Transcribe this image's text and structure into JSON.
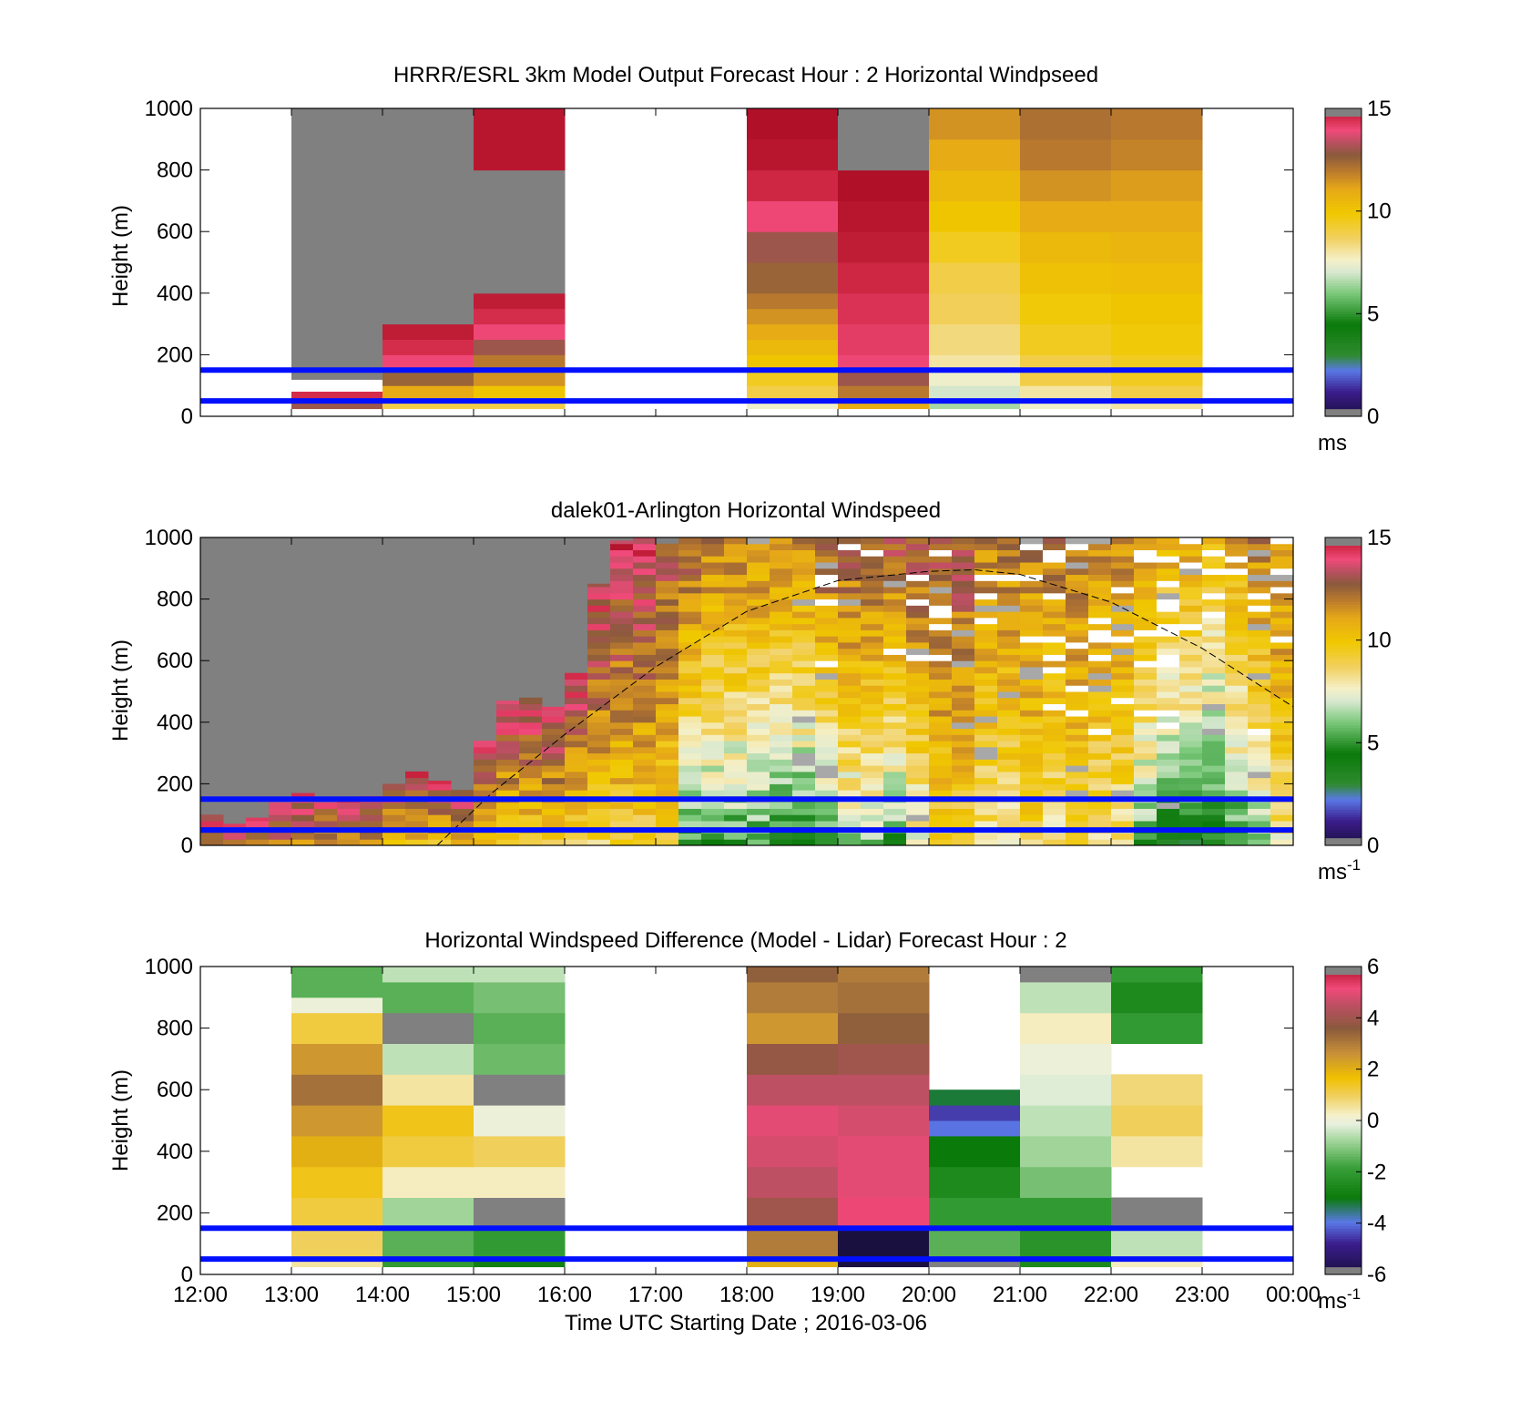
{
  "chart_data": [
    {
      "type": "heatmap",
      "title": "HRRR/ESRL 3km Model Output   Forecast Hour : 2 Horizontal Windpseed",
      "ylabel": "Height (m)",
      "ylim": [
        0,
        1000
      ],
      "yticks": [
        "0",
        "200",
        "400",
        "600",
        "800",
        "1000"
      ],
      "xlim_hours": [
        12,
        24
      ],
      "colorbar": {
        "ticks": [
          "0",
          "5",
          "10",
          "15"
        ],
        "range": [
          0,
          15
        ],
        "unit": "ms",
        "unit_sup": ""
      },
      "hlines_m": [
        50,
        150
      ],
      "columns": [
        {
          "start": 13,
          "end": 14,
          "profile": [
            [
              25,
              6
            ],
            [
              50,
              13
            ],
            [
              80,
              14.5
            ],
            [
              120,
              null
            ],
            [
              1000,
              -1
            ]
          ]
        },
        {
          "start": 14,
          "end": 15,
          "profile": [
            [
              25,
              7
            ],
            [
              50,
              9
            ],
            [
              100,
              11
            ],
            [
              150,
              12.5
            ],
            [
              200,
              14
            ],
            [
              250,
              14.5
            ],
            [
              300,
              14.8
            ],
            [
              1000,
              -1
            ]
          ]
        },
        {
          "start": 15,
          "end": 16,
          "profile": [
            [
              25,
              6
            ],
            [
              50,
              9
            ],
            [
              100,
              10
            ],
            [
              150,
              11.5
            ],
            [
              200,
              12
            ],
            [
              250,
              13
            ],
            [
              300,
              14
            ],
            [
              350,
              14.5
            ],
            [
              400,
              14.8
            ],
            [
              800,
              -1
            ],
            [
              1000,
              14.9
            ]
          ]
        },
        {
          "start": 16,
          "end": 18,
          "profile": [
            [
              1000,
              null
            ]
          ]
        },
        {
          "start": 18,
          "end": 19,
          "profile": [
            [
              25,
              7
            ],
            [
              50,
              7.5
            ],
            [
              100,
              9
            ],
            [
              150,
              9.5
            ],
            [
              200,
              10
            ],
            [
              250,
              10.5
            ],
            [
              300,
              11
            ],
            [
              350,
              11.5
            ],
            [
              400,
              12
            ],
            [
              500,
              12.5
            ],
            [
              600,
              13
            ],
            [
              700,
              14
            ],
            [
              800,
              14.6
            ],
            [
              900,
              14.9
            ],
            [
              1000,
              15
            ]
          ]
        },
        {
          "start": 19,
          "end": 20,
          "profile": [
            [
              25,
              10
            ],
            [
              50,
              11
            ],
            [
              100,
              12
            ],
            [
              150,
              13
            ],
            [
              200,
              14
            ],
            [
              300,
              14.2
            ],
            [
              400,
              14.4
            ],
            [
              500,
              14.6
            ],
            [
              600,
              14.8
            ],
            [
              700,
              14.9
            ],
            [
              800,
              15
            ],
            [
              1000,
              -1
            ]
          ]
        },
        {
          "start": 20,
          "end": 21,
          "profile": [
            [
              25,
              5
            ],
            [
              50,
              6.5
            ],
            [
              100,
              7
            ],
            [
              150,
              7.5
            ],
            [
              200,
              8
            ],
            [
              300,
              8.4
            ],
            [
              400,
              8.8
            ],
            [
              500,
              9
            ],
            [
              600,
              9.5
            ],
            [
              700,
              10
            ],
            [
              800,
              10.5
            ],
            [
              900,
              11
            ],
            [
              1000,
              11.5
            ]
          ]
        },
        {
          "start": 21,
          "end": 22,
          "profile": [
            [
              25,
              7
            ],
            [
              50,
              7.5
            ],
            [
              100,
              8
            ],
            [
              200,
              9
            ],
            [
              300,
              9.5
            ],
            [
              400,
              9.8
            ],
            [
              500,
              10.2
            ],
            [
              600,
              10.5
            ],
            [
              700,
              11
            ],
            [
              800,
              11.5
            ],
            [
              900,
              12
            ],
            [
              1000,
              12.2
            ]
          ]
        },
        {
          "start": 22,
          "end": 23,
          "profile": [
            [
              25,
              7
            ],
            [
              50,
              8
            ],
            [
              100,
              9
            ],
            [
              200,
              9.5
            ],
            [
              300,
              9.8
            ],
            [
              400,
              10
            ],
            [
              500,
              10.3
            ],
            [
              600,
              10.6
            ],
            [
              700,
              11
            ],
            [
              800,
              11.3
            ],
            [
              900,
              11.8
            ],
            [
              1000,
              12
            ]
          ]
        }
      ]
    },
    {
      "type": "heatmap",
      "title": "dalek01-Arlington  Horizontal Windspeed",
      "ylabel": "Height (m)",
      "ylim": [
        0,
        1000
      ],
      "yticks": [
        "0",
        "200",
        "400",
        "600",
        "800",
        "1000"
      ],
      "xlim_hours": [
        12,
        24
      ],
      "colorbar": {
        "ticks": [
          "0",
          "5",
          "10",
          "15"
        ],
        "range": [
          0,
          15
        ],
        "unit": "ms",
        "unit_sup": "-1"
      },
      "hlines_m": [
        50,
        150
      ],
      "boundary_curve": {
        "x_hours": [
          14.6,
          15.2,
          16,
          17,
          18,
          19,
          20,
          20.5,
          21,
          22,
          23,
          24
        ],
        "height_m": [
          0,
          170,
          360,
          580,
          760,
          860,
          890,
          895,
          880,
          790,
          640,
          450
        ]
      },
      "lidar_columns_hours": [
        12.0,
        12.25,
        12.5,
        12.75,
        13.0,
        13.25,
        13.5,
        13.75,
        14.0,
        14.25,
        14.5,
        14.75,
        15.0,
        15.25,
        15.5,
        15.75,
        16.0,
        16.25,
        16.5,
        16.75,
        17.0,
        17.25,
        17.5,
        17.75,
        18.0,
        18.25,
        18.5,
        18.75,
        19.0,
        19.25,
        19.5,
        19.75,
        20.0,
        20.25,
        20.5,
        20.75,
        21.0,
        21.25,
        21.5,
        21.75,
        22.0,
        22.25,
        22.5,
        22.75,
        23.0,
        23.25,
        23.5,
        23.75
      ],
      "lidar_data_top_m": [
        100,
        70,
        90,
        140,
        170,
        140,
        150,
        160,
        200,
        240,
        210,
        180,
        340,
        470,
        480,
        450,
        560,
        850,
        990,
        1000,
        980,
        1000,
        1000,
        1000,
        1000,
        1000,
        1000,
        1000,
        1000,
        1000,
        1000,
        1000,
        1000,
        1000,
        1000,
        1000,
        1000,
        1000,
        1000,
        1000,
        1000,
        1000,
        1000,
        1000,
        1000,
        1000,
        1000,
        1000
      ],
      "lidar_speed_low_ms": [
        12,
        12,
        12,
        12,
        12,
        11,
        11,
        11,
        10,
        10,
        10,
        10,
        10,
        9,
        9,
        9,
        9,
        9,
        9,
        9,
        9,
        5,
        5,
        5,
        5,
        4,
        4,
        5,
        6,
        6,
        5,
        7,
        9,
        9,
        8,
        8,
        9,
        8,
        9,
        8,
        8,
        5,
        4,
        4,
        4,
        5,
        6,
        8
      ],
      "lidar_speed_high_ms": [
        14,
        14,
        14,
        14,
        14,
        14,
        14,
        14,
        14,
        14,
        14,
        14,
        14,
        14,
        14,
        14,
        14,
        14,
        14,
        14,
        13,
        13,
        12,
        12,
        12,
        12,
        12,
        13,
        13,
        13,
        13,
        13,
        13,
        13,
        12,
        12,
        12,
        12,
        12,
        12,
        12,
        12,
        11,
        11,
        10,
        11,
        12,
        12
      ]
    },
    {
      "type": "heatmap",
      "title": "Horizontal Windspeed Difference (Model - Lidar) Forecast Hour : 2",
      "ylabel": "Height (m)",
      "xlabel": "Time UTC  Starting Date ; 2016-03-06",
      "ylim": [
        0,
        1000
      ],
      "yticks": [
        "0",
        "200",
        "400",
        "600",
        "800",
        "1000"
      ],
      "xticks": [
        "12:00",
        "13:00",
        "14:00",
        "15:00",
        "16:00",
        "17:00",
        "18:00",
        "19:00",
        "20:00",
        "21:00",
        "22:00",
        "23:00",
        "00:00"
      ],
      "xlim_hours": [
        12,
        24
      ],
      "colorbar": {
        "ticks": [
          "-6",
          "-4",
          "-2",
          "0",
          "2",
          "4",
          "6"
        ],
        "range": [
          -6,
          6
        ],
        "unit": "ms",
        "unit_sup": "-1"
      },
      "hlines_m": [
        50,
        150
      ],
      "columns": [
        {
          "start": 13,
          "end": 14,
          "profile": [
            [
              25,
              -1.5
            ],
            [
              50,
              0.5
            ],
            [
              150,
              1
            ],
            [
              250,
              1.2
            ],
            [
              350,
              1.5
            ],
            [
              450,
              2
            ],
            [
              550,
              2.5
            ],
            [
              650,
              3.2
            ],
            [
              750,
              2.5
            ],
            [
              850,
              1.2
            ],
            [
              900,
              0
            ],
            [
              1000,
              -1.5
            ]
          ]
        },
        {
          "start": 14,
          "end": 15,
          "profile": [
            [
              25,
              -3
            ],
            [
              50,
              -2
            ],
            [
              150,
              -1.5
            ],
            [
              250,
              -0.8
            ],
            [
              350,
              0.3
            ],
            [
              450,
              1.2
            ],
            [
              550,
              1.5
            ],
            [
              650,
              0.5
            ],
            [
              750,
              -0.5
            ],
            [
              850,
              -1
            ],
            [
              950,
              -1.5
            ],
            [
              1000,
              -0.5
            ]
          ]
        },
        {
          "start": 15,
          "end": 16,
          "profile": [
            [
              25,
              -3
            ],
            [
              50,
              -2.8
            ],
            [
              150,
              -2
            ],
            [
              250,
              -1
            ],
            [
              350,
              0.3
            ],
            [
              450,
              1
            ],
            [
              550,
              0
            ],
            [
              650,
              -1
            ],
            [
              750,
              -1.3
            ],
            [
              850,
              -1.5
            ],
            [
              950,
              -1.2
            ],
            [
              1000,
              -0.5
            ]
          ]
        },
        {
          "start": 16,
          "end": 18,
          "profile": [
            [
              1000,
              null
            ]
          ]
        },
        {
          "start": 18,
          "end": 19,
          "profile": [
            [
              25,
              1
            ],
            [
              50,
              2
            ],
            [
              150,
              3
            ],
            [
              250,
              4
            ],
            [
              350,
              4.5
            ],
            [
              450,
              4.8
            ],
            [
              550,
              5
            ],
            [
              650,
              4.5
            ],
            [
              750,
              3.8
            ],
            [
              850,
              2.5
            ],
            [
              950,
              3
            ],
            [
              1000,
              3.5
            ]
          ]
        },
        {
          "start": 19,
          "end": 20,
          "profile": [
            [
              25,
              5
            ],
            [
              50,
              -6
            ],
            [
              150,
              -6
            ],
            [
              250,
              5.2
            ],
            [
              350,
              5
            ],
            [
              450,
              5
            ],
            [
              550,
              4.8
            ],
            [
              650,
              4.5
            ],
            [
              750,
              4
            ],
            [
              850,
              3.5
            ],
            [
              950,
              3.2
            ],
            [
              1000,
              3
            ]
          ]
        },
        {
          "start": 20,
          "end": 21,
          "profile": [
            [
              25,
              -1.8
            ],
            [
              50,
              -1
            ],
            [
              150,
              -1.5
            ],
            [
              250,
              -2
            ],
            [
              350,
              -2.5
            ],
            [
              450,
              -3
            ],
            [
              500,
              -4
            ],
            [
              550,
              -4.5
            ],
            [
              600,
              -3.2
            ],
            [
              1000,
              null
            ]
          ]
        },
        {
          "start": 21,
          "end": 22,
          "profile": [
            [
              25,
              -2
            ],
            [
              50,
              -2.5
            ],
            [
              150,
              -2.2
            ],
            [
              250,
              -2
            ],
            [
              350,
              -1.2
            ],
            [
              450,
              -0.8
            ],
            [
              550,
              -0.5
            ],
            [
              650,
              -0.2
            ],
            [
              750,
              0
            ],
            [
              850,
              0.3
            ],
            [
              950,
              -0.5
            ],
            [
              1000,
              -1
            ]
          ]
        },
        {
          "start": 22,
          "end": 23,
          "profile": [
            [
              25,
              0
            ],
            [
              50,
              0.3
            ],
            [
              150,
              -0.5
            ],
            [
              250,
              -1
            ],
            [
              350,
              null
            ],
            [
              450,
              0.5
            ],
            [
              550,
              1
            ],
            [
              650,
              0.8
            ],
            [
              750,
              null
            ],
            [
              850,
              -2
            ],
            [
              950,
              -2.5
            ],
            [
              1000,
              -2
            ]
          ]
        }
      ]
    }
  ]
}
